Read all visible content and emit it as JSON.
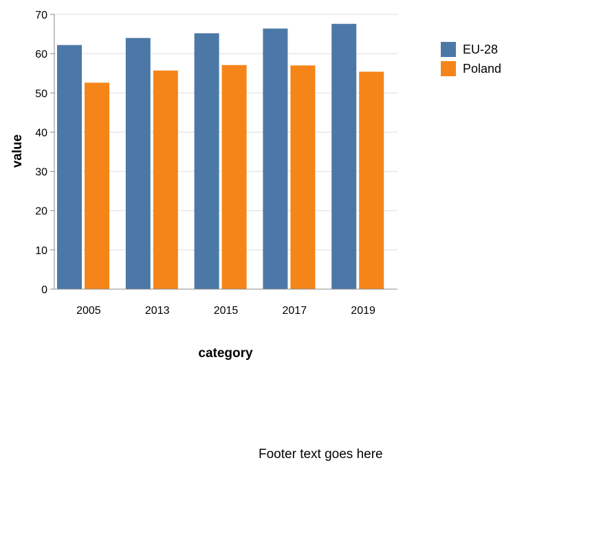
{
  "chart_data": {
    "type": "bar",
    "title": "",
    "xlabel": "category",
    "ylabel": "value",
    "categories": [
      "2005",
      "2013",
      "2015",
      "2017",
      "2019"
    ],
    "series": [
      {
        "name": "EU-28",
        "values": [
          62.2,
          64.0,
          65.2,
          66.4,
          67.6
        ],
        "color": "#4c78a8"
      },
      {
        "name": "Poland",
        "values": [
          52.6,
          55.7,
          57.1,
          57.0,
          55.4
        ],
        "color": "#f58518"
      }
    ],
    "ylim": [
      0,
      70
    ],
    "yticks": [
      "0",
      "10",
      "20",
      "30",
      "40",
      "50",
      "60",
      "70"
    ],
    "grid": true,
    "legend_position": "right"
  },
  "footer": {
    "text": "Footer text goes here"
  }
}
